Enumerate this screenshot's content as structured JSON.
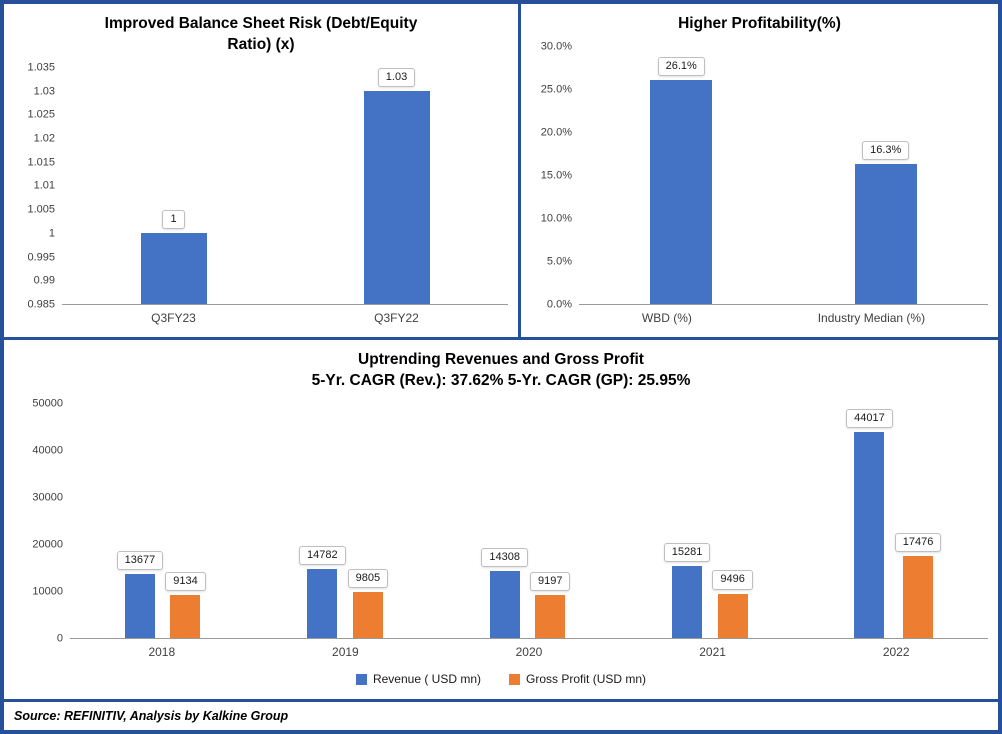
{
  "frame": {
    "border_color": "#27509B",
    "background": "#FFFFFF"
  },
  "footer": {
    "source_note": "Source: REFINITIV, Analysis by Kalkine Group"
  },
  "chart_data": [
    {
      "type": "bar",
      "title": "Improved Balance Sheet Risk (Debt/Equity Ratio) (x)",
      "title_lines": [
        "Improved Balance Sheet Risk (Debt/Equity",
        "Ratio) (x)"
      ],
      "categories": [
        "Q3FY23",
        "Q3FY22"
      ],
      "values": [
        1,
        1.03
      ],
      "value_labels": [
        "1",
        "1.03"
      ],
      "ylim": [
        0.985,
        1.035
      ],
      "yticks": [
        "1.035",
        "1.03",
        "1.025",
        "1.02",
        "1.015",
        "1.01",
        "1.005",
        "1",
        "0.995",
        "0.99",
        "0.985"
      ],
      "bar_color": "#4472C4",
      "grid": false,
      "legend": "none"
    },
    {
      "type": "bar",
      "title": "Higher Profitability(%)",
      "title_lines": [
        "Higher Profitability(%)"
      ],
      "categories": [
        "WBD (%)",
        "Industry Median (%)"
      ],
      "values": [
        26.1,
        16.3
      ],
      "value_labels": [
        "26.1%",
        "16.3%"
      ],
      "ylim": [
        0,
        30
      ],
      "yticks": [
        "30.0%",
        "25.0%",
        "20.0%",
        "15.0%",
        "10.0%",
        "5.0%",
        "0.0%"
      ],
      "bar_color": "#4472C4",
      "grid": false,
      "legend": "none"
    },
    {
      "type": "bar",
      "title": "Uptrending Revenues and Gross Profit 5-Yr. CAGR (Rev.): 37.62% 5-Yr. CAGR (GP): 25.95%",
      "title_lines": [
        "Uptrending Revenues and Gross Profit",
        "5-Yr. CAGR (Rev.): 37.62% 5-Yr. CAGR (GP): 25.95%"
      ],
      "categories": [
        "2018",
        "2019",
        "2020",
        "2021",
        "2022"
      ],
      "series": [
        {
          "name": "Revenue ( USD mn)",
          "color": "#4472C4",
          "values": [
            13677,
            14782,
            14308,
            15281,
            44017
          ],
          "value_labels": [
            "13677",
            "14782",
            "14308",
            "15281",
            "44017"
          ]
        },
        {
          "name": "Gross Profit (USD mn)",
          "color": "#ED7D31",
          "values": [
            9134,
            9805,
            9197,
            9496,
            17476
          ],
          "value_labels": [
            "9134",
            "9805",
            "9197",
            "9496",
            "17476"
          ]
        }
      ],
      "ylim": [
        0,
        50000
      ],
      "yticks": [
        "50000",
        "40000",
        "30000",
        "20000",
        "10000",
        "0"
      ],
      "grid": false,
      "legend": "bottom"
    }
  ]
}
